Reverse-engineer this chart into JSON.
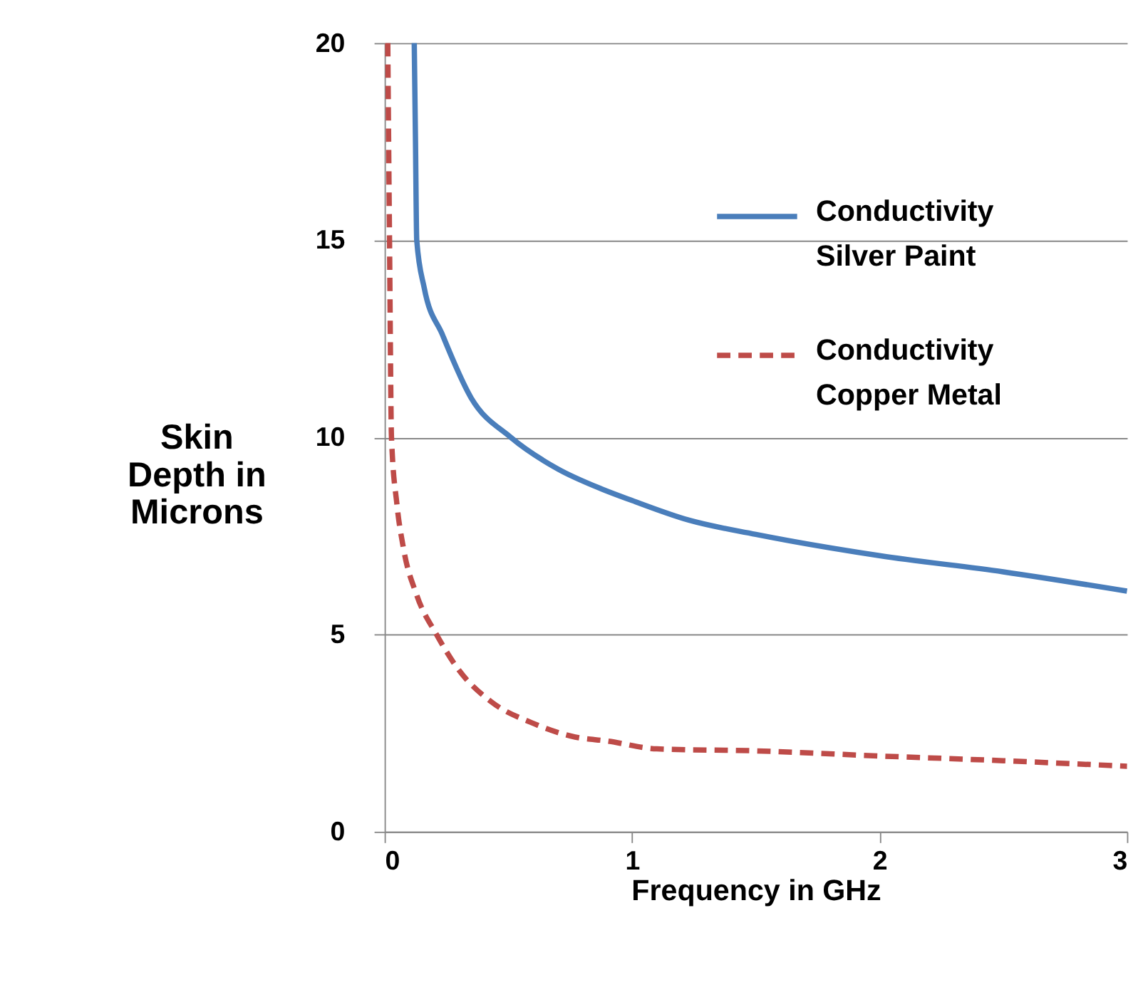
{
  "chart_data": {
    "type": "line",
    "xlabel": "Frequency in GHz",
    "ylabel": "Skin\nDepth in\nMicrons",
    "xlim": [
      0,
      3
    ],
    "xticks": [
      0,
      1,
      2,
      3
    ],
    "ylim": [
      0,
      20
    ],
    "yticks": [
      0,
      5,
      10,
      15,
      20
    ],
    "grid": "y",
    "legend": "top right",
    "series": [
      {
        "name": "Conductivity\nSilver Paint",
        "color": "#4a7ebb",
        "line_style": "solid",
        "x": [
          0.12,
          0.125,
          0.13,
          0.16,
          0.234,
          0.35,
          0.51,
          0.7,
          0.878,
          1,
          1.23,
          1.5,
          2,
          2.5,
          3
        ],
        "values": [
          20,
          17.5,
          15,
          13.8,
          12.6,
          11,
          10,
          9.2,
          8.69,
          8.4,
          7.9,
          7.54,
          7.0,
          6.59,
          6.1
        ]
      },
      {
        "name": "Conductivity\nCopper Metal",
        "color": "#be4b48",
        "line_style": "dashed",
        "x": [
          0.013,
          0.02,
          0.028,
          0.05,
          0.076,
          0.13,
          0.21,
          0.3,
          0.43,
          0.6,
          0.77,
          0.9,
          1.1,
          1.5,
          2,
          2.5,
          3
        ],
        "values": [
          20,
          15,
          10,
          8.3,
          7.2,
          6.0,
          5.0,
          4.1,
          3.3,
          2.75,
          2.4,
          2.3,
          2.1,
          2.05,
          1.92,
          1.8,
          1.66
        ]
      }
    ]
  }
}
